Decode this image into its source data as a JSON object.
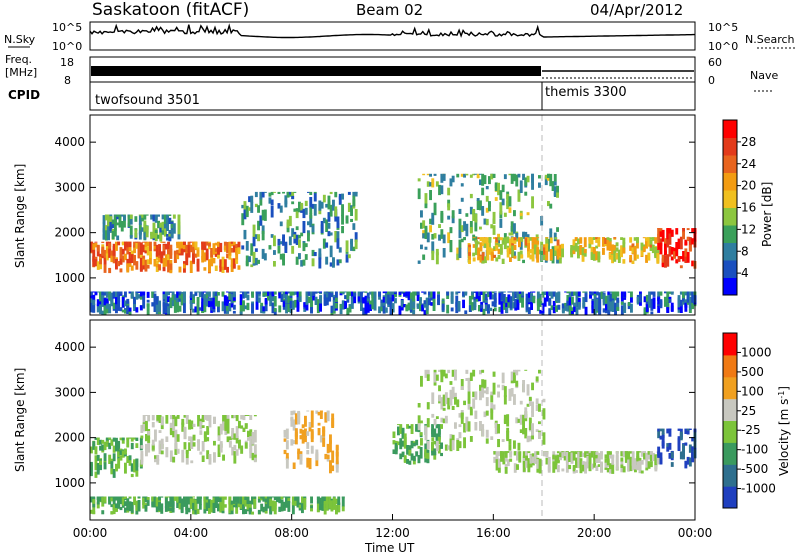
{
  "header": {
    "station": "Saskatoon (fitACF)",
    "beam": "Beam 02",
    "date": "04/Apr/2012"
  },
  "noise_panel": {
    "left_label": "N.Sky",
    "right_label": "N.Search",
    "left_ticks": [
      "10^5",
      "10^0"
    ],
    "right_ticks": [
      "10^5",
      "10^0"
    ]
  },
  "freq_panel": {
    "left_label_line1": "Freq.",
    "left_label_line2": "[MHz]",
    "left_ticks": [
      "18",
      "8"
    ],
    "right_ticks": [
      "60",
      "0"
    ],
    "right_label": "Nave"
  },
  "cpid_panel": {
    "label": "CPID",
    "modes": [
      {
        "name": "twofsound 3501",
        "start_hour": 0
      },
      {
        "name": "themis 3300",
        "start_hour": 18
      }
    ]
  },
  "power_colorbar": {
    "label": "Power [dB]",
    "ticks": [
      "28",
      "24",
      "20",
      "16",
      "12",
      "8",
      "4"
    ],
    "colors": [
      "#0000ff",
      "#1a4fbf",
      "#2f7ea0",
      "#3aa05a",
      "#8cc63f",
      "#f0c020",
      "#f39c12",
      "#e8641e",
      "#e23a1a",
      "#ff0000"
    ]
  },
  "velocity_colorbar": {
    "label": "Velocity [m s^-1]",
    "ticks": [
      "1000",
      "500",
      "100",
      "25",
      "-25",
      "-100",
      "-500",
      "-1000"
    ],
    "colors": [
      "#1f3fbf",
      "#2e6f8e",
      "#3a9a5e",
      "#7cc43a",
      "#c8c8c0",
      "#f0a020",
      "#f07a14",
      "#ff0000"
    ]
  },
  "time_axis": {
    "ticks": [
      "00:00",
      "04:00",
      "08:00",
      "12:00",
      "16:00",
      "20:00",
      "00:00"
    ],
    "label": "Time UT"
  },
  "chart_data": [
    {
      "type": "heatmap",
      "name": "power",
      "xlabel": "Time UT",
      "ylabel": "Slant Range [km]",
      "xlim": [
        0,
        24
      ],
      "ylim": [
        180,
        4600
      ],
      "yticks": [
        "1000",
        "2000",
        "3000",
        "4000"
      ],
      "colorbar_range": [
        0,
        30
      ],
      "bands": [
        {
          "t0": 0.0,
          "t1": 6.0,
          "r0": 1100,
          "r1": 1800,
          "level": 22
        },
        {
          "t0": 0.5,
          "t1": 3.5,
          "r0": 1800,
          "r1": 2400,
          "level": 10
        },
        {
          "t0": 0.0,
          "t1": 24.0,
          "r0": 180,
          "r1": 700,
          "level": 6
        },
        {
          "t0": 6.0,
          "t1": 10.5,
          "r0": 1200,
          "r1": 2900,
          "level": 9
        },
        {
          "t0": 13.0,
          "t1": 18.5,
          "r0": 1300,
          "r1": 3300,
          "level": 11
        },
        {
          "t0": 15.0,
          "t1": 22.5,
          "r0": 1300,
          "r1": 1900,
          "level": 17
        },
        {
          "t0": 22.5,
          "t1": 24.0,
          "r0": 1200,
          "r1": 2100,
          "level": 27
        }
      ]
    },
    {
      "type": "heatmap",
      "name": "velocity",
      "xlabel": "Time UT",
      "ylabel": "Slant Range [km]",
      "xlim": [
        0,
        24
      ],
      "ylim": [
        180,
        4600
      ],
      "yticks": [
        "1000",
        "2000",
        "3000",
        "4000"
      ],
      "colorbar_range": [
        -1000,
        1000
      ],
      "bands": [
        {
          "t0": 0.0,
          "t1": 2.0,
          "r0": 1100,
          "r1": 2000,
          "level": -250
        },
        {
          "t0": 2.0,
          "t1": 6.5,
          "r0": 1400,
          "r1": 2500,
          "level": 0
        },
        {
          "t0": 0.0,
          "t1": 10.0,
          "r0": 300,
          "r1": 700,
          "level": -300
        },
        {
          "t0": 7.5,
          "t1": 9.8,
          "r0": 1200,
          "r1": 2600,
          "level": 300
        },
        {
          "t0": 12.0,
          "t1": 14.0,
          "r0": 1400,
          "r1": 2300,
          "level": -300
        },
        {
          "t0": 13.0,
          "t1": 18.0,
          "r0": 1700,
          "r1": 3500,
          "level": 0
        },
        {
          "t0": 16.0,
          "t1": 22.5,
          "r0": 1200,
          "r1": 1700,
          "level": 0
        },
        {
          "t0": 22.5,
          "t1": 24.0,
          "r0": 1300,
          "r1": 2200,
          "level": -800
        }
      ]
    }
  ]
}
